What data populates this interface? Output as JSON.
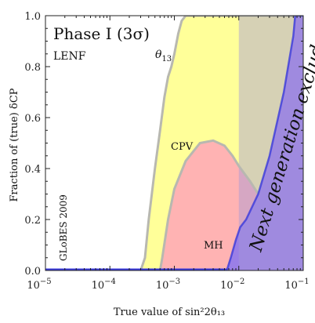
{
  "chart_data": {
    "type": "area",
    "title": "Phase I (3σ)",
    "subtitle": "LENF",
    "xlabel": "True value of sin²2θ₁₃",
    "ylabel": "Fraction of (true) δCP",
    "xscale": "log",
    "xlim": [
      1e-05,
      0.1
    ],
    "ylim": [
      0,
      1
    ],
    "x_ticks": [
      1e-05,
      0.0001,
      0.001,
      0.01,
      0.1
    ],
    "x_tick_labels": [
      "10",
      "10",
      "10",
      "10",
      "10"
    ],
    "x_tick_exponents": [
      "−5",
      "−4",
      "−3",
      "−2",
      "−1"
    ],
    "y_ticks": [
      0.0,
      0.2,
      0.4,
      0.6,
      0.8,
      1.0
    ],
    "y_tick_labels": [
      "0.0",
      "0.2",
      "0.4",
      "0.6",
      "0.8",
      "1.0"
    ],
    "colors": {
      "theta13": "#ffff99",
      "cpv": "#ffb3b3",
      "mh": "#9b7fe6",
      "excluded": "#a59ad6",
      "boundary": "#b8b8b0",
      "baseline": "#3a3adb"
    },
    "series": [
      {
        "name": "θ13",
        "points": [
          [
            1e-05,
            0
          ],
          [
            0.0003,
            0
          ],
          [
            0.00035,
            0.05
          ],
          [
            0.0004,
            0.2
          ],
          [
            0.0005,
            0.4
          ],
          [
            0.0006,
            0.55
          ],
          [
            0.0007,
            0.68
          ],
          [
            0.0008,
            0.76
          ],
          [
            0.0009,
            0.8
          ],
          [
            0.001,
            0.85
          ],
          [
            0.00115,
            0.93
          ],
          [
            0.0013,
            0.98
          ],
          [
            0.0015,
            1.0
          ],
          [
            0.1,
            1.0
          ]
        ]
      },
      {
        "name": "CPV",
        "points": [
          [
            1e-05,
            0
          ],
          [
            0.0006,
            0
          ],
          [
            0.00065,
            0.05
          ],
          [
            0.0008,
            0.2
          ],
          [
            0.001,
            0.32
          ],
          [
            0.0015,
            0.43
          ],
          [
            0.0025,
            0.5
          ],
          [
            0.004,
            0.51
          ],
          [
            0.006,
            0.49
          ],
          [
            0.008,
            0.45
          ],
          [
            0.01,
            0.41
          ],
          [
            0.015,
            0.35
          ],
          [
            0.02,
            0.3
          ]
        ]
      },
      {
        "name": "MH",
        "points": [
          [
            1e-05,
            0
          ],
          [
            0.0065,
            0
          ],
          [
            0.0075,
            0.05
          ],
          [
            0.009,
            0.12
          ],
          [
            0.0105,
            0.17
          ],
          [
            0.013,
            0.2
          ],
          [
            0.02,
            0.3
          ],
          [
            0.03,
            0.45
          ],
          [
            0.05,
            0.7
          ],
          [
            0.07,
            0.92
          ],
          [
            0.075,
            1.0
          ],
          [
            0.1,
            1.0
          ]
        ]
      }
    ],
    "annotations": {
      "theta13": "θ",
      "theta13_sub": "13",
      "cpv": "CPV",
      "mh": "MH",
      "excluded": "Next generation excluded",
      "credit": "GLoBES 2009"
    },
    "excluded_region_from": 0.01
  }
}
